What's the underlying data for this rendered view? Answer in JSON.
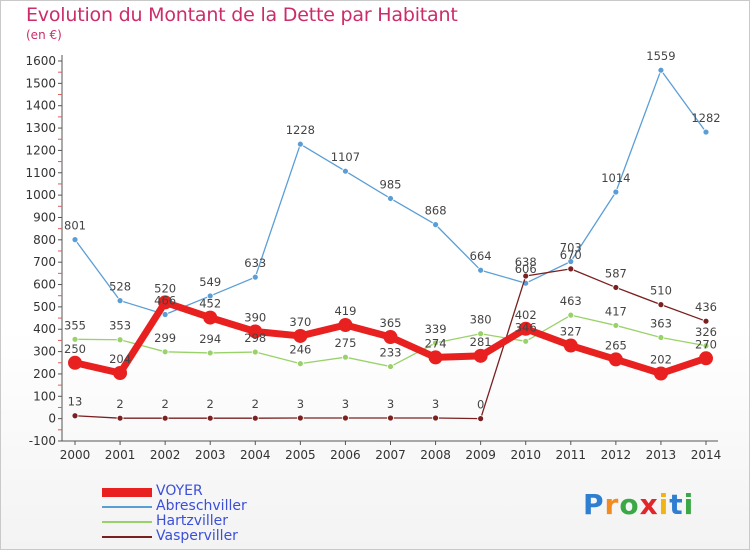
{
  "title": "Evolution du Montant de la Dette par Habitant",
  "unit": "(en €)",
  "brand": {
    "text": "Proxiti"
  },
  "chart_data": {
    "type": "line",
    "categories": [
      "2000",
      "2001",
      "2002",
      "2003",
      "2004",
      "2005",
      "2006",
      "2007",
      "2008",
      "2009",
      "2010",
      "2011",
      "2012",
      "2013",
      "2014"
    ],
    "ylim": [
      -100,
      1600
    ],
    "yticks": [
      -100,
      0,
      100,
      200,
      300,
      400,
      500,
      600,
      700,
      800,
      900,
      1000,
      1100,
      1200,
      1300,
      1400,
      1500,
      1600
    ],
    "grid": false,
    "legend_position": "bottom-left",
    "series": [
      {
        "name": "VOYER",
        "color": "#e8201f",
        "values": [
          250,
          204,
          520,
          452,
          390,
          370,
          419,
          365,
          274,
          281,
          402,
          327,
          265,
          202,
          270
        ]
      },
      {
        "name": "Abreschviller",
        "color": "#5b9ed6",
        "values": [
          801,
          528,
          466,
          549,
          633,
          1228,
          1107,
          985,
          868,
          664,
          606,
          703,
          1014,
          1559,
          1282
        ]
      },
      {
        "name": "Hartzviller",
        "color": "#9ad26a",
        "values": [
          355,
          353,
          299,
          294,
          298,
          246,
          275,
          233,
          339,
          380,
          346,
          463,
          417,
          363,
          326
        ]
      },
      {
        "name": "Vasperviller",
        "color": "#7a2020",
        "values": [
          13,
          2,
          2,
          2,
          2,
          3,
          3,
          3,
          3,
          0,
          638,
          670,
          587,
          510,
          436
        ]
      }
    ],
    "labels": [
      [
        "250",
        "204",
        "520",
        "452",
        "390",
        "370",
        "419",
        "365",
        "274",
        "281",
        "402",
        "327",
        "265",
        "202",
        "270"
      ],
      [
        "801",
        "528",
        "466",
        "549",
        "633",
        "1228",
        "1107",
        "985",
        "868",
        "664",
        "606",
        "703",
        "1014",
        "1559",
        "1282"
      ],
      [
        "355",
        "353",
        "299",
        "294",
        "298",
        "246",
        "275",
        "233",
        "339",
        "380",
        "346",
        "463",
        "417",
        "363",
        "326"
      ],
      [
        "13",
        "2",
        "2",
        "2",
        "2",
        "3",
        "3",
        "3",
        "3",
        "0",
        "638",
        "670",
        "587",
        "510",
        "436"
      ]
    ]
  }
}
